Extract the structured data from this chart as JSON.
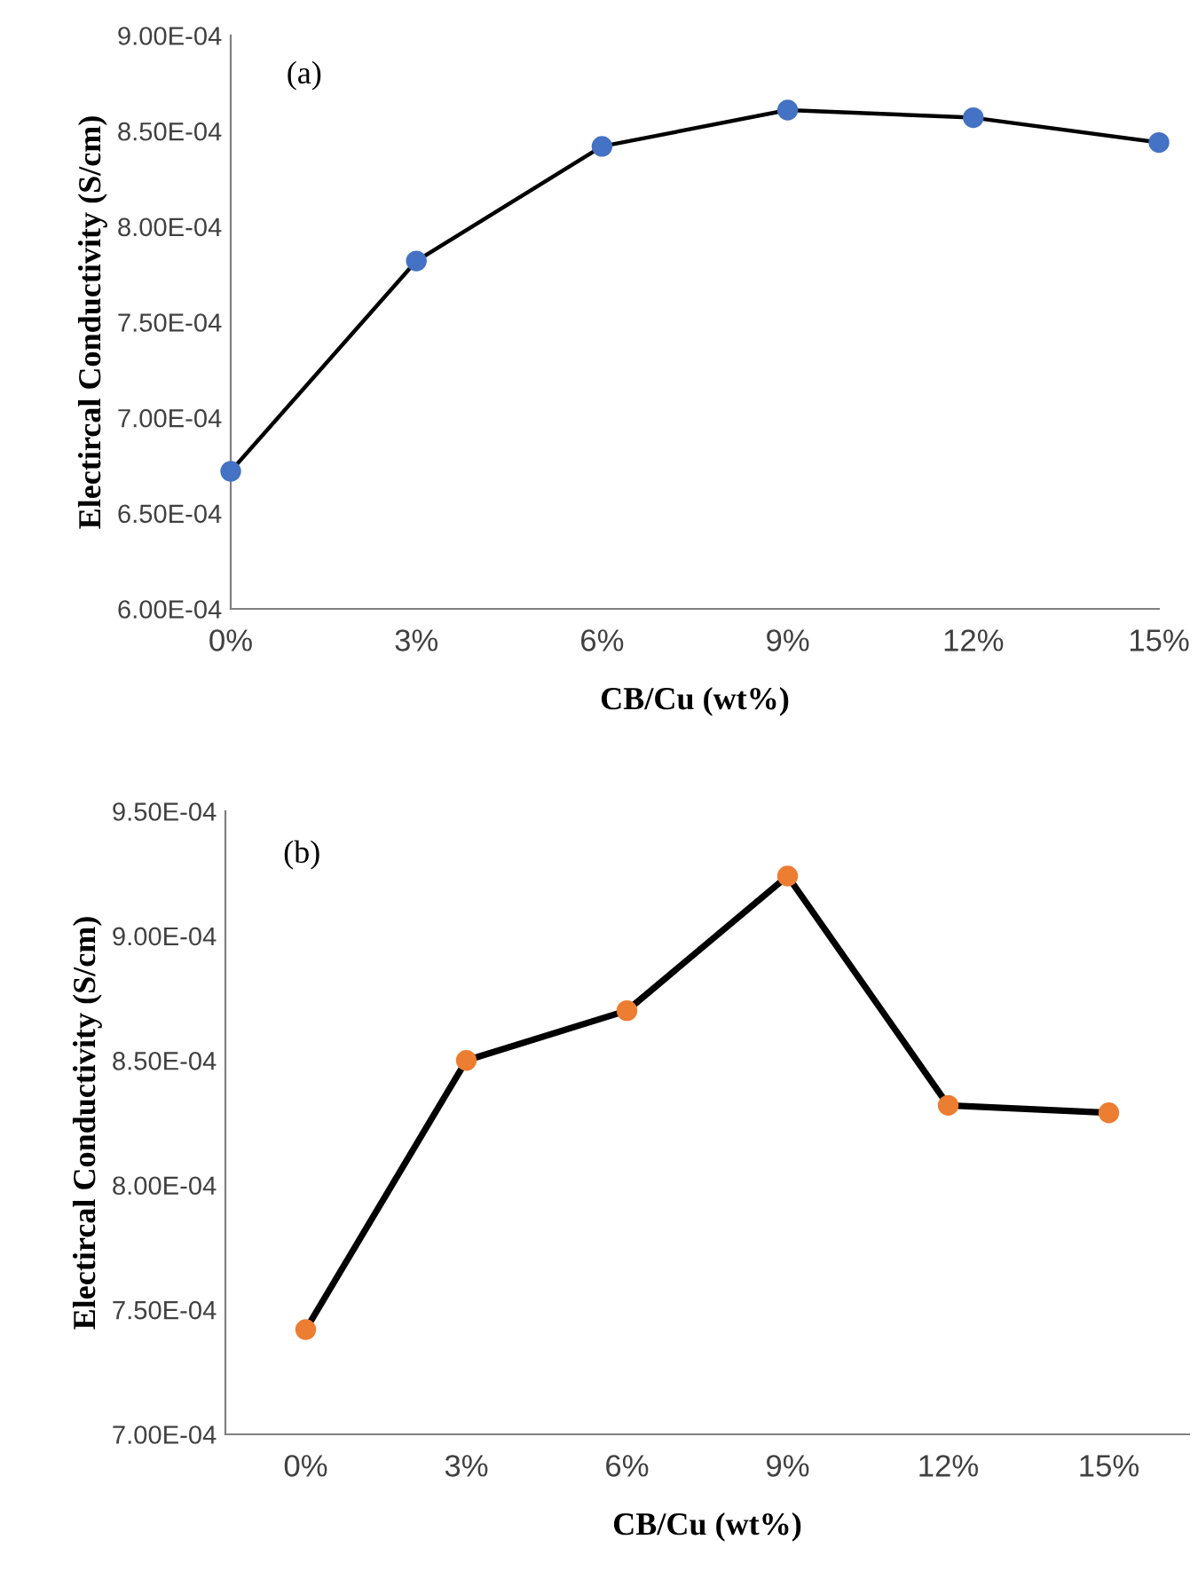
{
  "chart_data": [
    {
      "type": "line",
      "categories": [
        "0%",
        "3%",
        "6%",
        "9%",
        "12%",
        "15%"
      ],
      "series": [
        {
          "color": "#4472c4",
          "values": [
            0.000672,
            0.000782,
            0.000842,
            0.000861,
            0.000857,
            0.000844
          ]
        }
      ],
      "xlabel": "CB/Cu (wt%)",
      "ylabel": "Electircal Conductivity (S/cm)",
      "annotations": [
        "(a)"
      ],
      "ylim": [
        0.0006,
        0.0009
      ],
      "yticks": [
        {
          "value": 0.0006,
          "label": "6.00E-04"
        },
        {
          "value": 0.00065,
          "label": "6.50E-04"
        },
        {
          "value": 0.0007,
          "label": "7.00E-04"
        },
        {
          "value": 0.00075,
          "label": "7.50E-04"
        },
        {
          "value": 0.0008,
          "label": "8.00E-04"
        },
        {
          "value": 0.00085,
          "label": "8.50E-04"
        },
        {
          "value": 0.0009,
          "label": "9.00E-04"
        }
      ],
      "marker": "circle",
      "grid": false,
      "legend": false
    },
    {
      "type": "line",
      "categories": [
        "0%",
        "3%",
        "6%",
        "9%",
        "12%",
        "15%"
      ],
      "series": [
        {
          "color": "#ed7d31",
          "values": [
            0.000742,
            0.00085,
            0.00087,
            0.000924,
            0.000832,
            0.000829
          ]
        }
      ],
      "xlabel": "CB/Cu (wt%)",
      "ylabel": "Electircal Conductivity (S/cm)",
      "annotations": [
        "(b)"
      ],
      "ylim": [
        0.0007,
        0.00095
      ],
      "yticks": [
        {
          "value": 0.0007,
          "label": "7.00E-04"
        },
        {
          "value": 0.00075,
          "label": "7.50E-04"
        },
        {
          "value": 0.0008,
          "label": "8.00E-04"
        },
        {
          "value": 0.00085,
          "label": "8.50E-04"
        },
        {
          "value": 0.0009,
          "label": "9.00E-04"
        },
        {
          "value": 0.00095,
          "label": "9.50E-04"
        }
      ],
      "marker": "circle",
      "grid": false,
      "legend": false
    }
  ]
}
